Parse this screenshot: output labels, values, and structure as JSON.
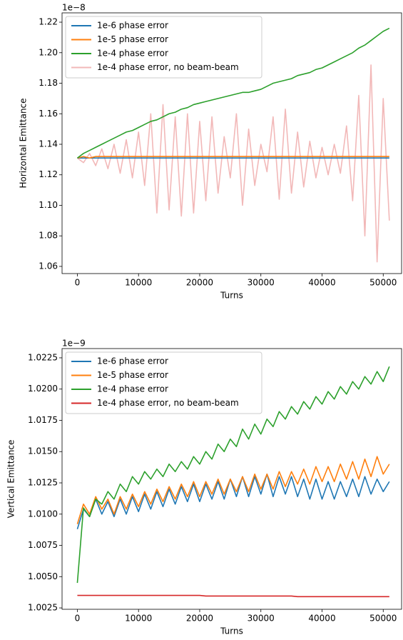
{
  "chart_data": [
    {
      "type": "line",
      "ylabel": "Horizontal Emittance",
      "xlabel": "Turns",
      "offset_text": "1e−8",
      "legend": "upper left",
      "grid": false,
      "xlim": [
        -2500,
        53000
      ],
      "xticks": [
        0,
        10000,
        20000,
        30000,
        40000,
        50000
      ],
      "ylim": [
        1.0553,
        1.2261
      ],
      "yticks": [
        1.06,
        1.08,
        {
          "value": 1.1,
          "label": "1.10"
        },
        1.12,
        1.14,
        1.16,
        1.18,
        {
          "value": 1.2,
          "label": "1.20"
        },
        1.22
      ],
      "x": [
        0,
        1000,
        2000,
        3000,
        4000,
        5000,
        6000,
        7000,
        8000,
        9000,
        10000,
        11000,
        12000,
        13000,
        14000,
        15000,
        16000,
        17000,
        18000,
        19000,
        20000,
        21000,
        22000,
        23000,
        24000,
        25000,
        26000,
        27000,
        28000,
        29000,
        30000,
        31000,
        32000,
        33000,
        34000,
        35000,
        36000,
        37000,
        38000,
        39000,
        40000,
        41000,
        42000,
        43000,
        44000,
        45000,
        46000,
        47000,
        48000,
        49000,
        50000,
        51000
      ],
      "series": [
        {
          "name": "1e-4 phase error, no beam-beam",
          "color": "#f2b8b8",
          "values": [
            1.131,
            1.128,
            1.134,
            1.126,
            1.137,
            1.124,
            1.14,
            1.121,
            1.143,
            1.118,
            1.148,
            1.113,
            1.16,
            1.095,
            1.166,
            1.097,
            1.158,
            1.093,
            1.16,
            1.095,
            1.155,
            1.103,
            1.158,
            1.108,
            1.145,
            1.118,
            1.16,
            1.1,
            1.15,
            1.113,
            1.14,
            1.122,
            1.158,
            1.104,
            1.163,
            1.108,
            1.148,
            1.112,
            1.142,
            1.118,
            1.138,
            1.12,
            1.14,
            1.121,
            1.152,
            1.103,
            1.172,
            1.08,
            1.192,
            1.063,
            1.17,
            1.09
          ]
        },
        {
          "name": "1e-6 phase error",
          "color": "#1f77b4",
          "values": [
            1.131,
            1.131,
            1.131,
            1.131,
            1.131,
            1.131,
            1.131,
            1.131,
            1.131,
            1.131,
            1.131,
            1.131,
            1.131,
            1.131,
            1.131,
            1.131,
            1.131,
            1.131,
            1.131,
            1.131,
            1.131,
            1.131,
            1.131,
            1.131,
            1.131,
            1.131,
            1.131,
            1.131,
            1.131,
            1.131,
            1.131,
            1.131,
            1.131,
            1.131,
            1.131,
            1.131,
            1.131,
            1.131,
            1.131,
            1.131,
            1.131,
            1.131,
            1.131,
            1.131,
            1.131,
            1.131,
            1.131,
            1.131,
            1.131,
            1.131,
            1.131,
            1.131
          ]
        },
        {
          "name": "1e-5 phase error",
          "color": "#ff7f0e",
          "values": [
            1.131,
            1.132,
            1.131,
            1.132,
            1.132,
            1.132,
            1.132,
            1.132,
            1.132,
            1.132,
            1.132,
            1.132,
            1.132,
            1.132,
            1.132,
            1.132,
            1.132,
            1.132,
            1.132,
            1.132,
            1.132,
            1.132,
            1.132,
            1.132,
            1.132,
            1.132,
            1.132,
            1.132,
            1.132,
            1.132,
            1.132,
            1.132,
            1.132,
            1.132,
            1.132,
            1.132,
            1.132,
            1.132,
            1.132,
            1.132,
            1.132,
            1.132,
            1.132,
            1.132,
            1.132,
            1.132,
            1.132,
            1.132,
            1.132,
            1.132,
            1.132,
            1.132
          ]
        },
        {
          "name": "1e-4 phase error",
          "color": "#2ca02c",
          "values": [
            1.131,
            1.134,
            1.136,
            1.138,
            1.14,
            1.142,
            1.144,
            1.146,
            1.148,
            1.149,
            1.151,
            1.153,
            1.155,
            1.156,
            1.158,
            1.16,
            1.161,
            1.163,
            1.164,
            1.166,
            1.167,
            1.168,
            1.169,
            1.17,
            1.171,
            1.172,
            1.173,
            1.174,
            1.174,
            1.175,
            1.176,
            1.178,
            1.18,
            1.181,
            1.182,
            1.183,
            1.185,
            1.186,
            1.187,
            1.189,
            1.19,
            1.192,
            1.194,
            1.196,
            1.198,
            1.2,
            1.203,
            1.205,
            1.208,
            1.211,
            1.214,
            1.216
          ]
        }
      ]
    },
    {
      "type": "line",
      "ylabel": "Vertical Emittance",
      "xlabel": "Turns",
      "offset_text": "1e−9",
      "legend": "upper left",
      "grid": false,
      "xlim": [
        -2500,
        53000
      ],
      "xticks": [
        0,
        10000,
        20000,
        30000,
        40000,
        50000
      ],
      "ylim": [
        1.00239,
        1.02324
      ],
      "yticks": [
        1.0025,
        {
          "value": 1.005,
          "label": "1.0050"
        },
        1.0075,
        {
          "value": 1.01,
          "label": "1.0100"
        },
        1.0125,
        {
          "value": 1.015,
          "label": "1.0150"
        },
        1.0175,
        {
          "value": 1.02,
          "label": "1.0200"
        },
        1.0225
      ],
      "x": [
        0,
        1000,
        2000,
        3000,
        4000,
        5000,
        6000,
        7000,
        8000,
        9000,
        10000,
        11000,
        12000,
        13000,
        14000,
        15000,
        16000,
        17000,
        18000,
        19000,
        20000,
        21000,
        22000,
        23000,
        24000,
        25000,
        26000,
        27000,
        28000,
        29000,
        30000,
        31000,
        32000,
        33000,
        34000,
        35000,
        36000,
        37000,
        38000,
        39000,
        40000,
        41000,
        42000,
        43000,
        44000,
        45000,
        46000,
        47000,
        48000,
        49000,
        50000,
        51000
      ],
      "series": [
        {
          "name": "1e-6 phase error",
          "color": "#1f77b4",
          "values": [
            1.0088,
            1.0104,
            1.0098,
            1.0112,
            1.01,
            1.011,
            1.0098,
            1.0112,
            1.01,
            1.0114,
            1.0102,
            1.0116,
            1.0104,
            1.0118,
            1.0106,
            1.012,
            1.0108,
            1.0122,
            1.011,
            1.0124,
            1.011,
            1.0124,
            1.0112,
            1.0126,
            1.0112,
            1.0128,
            1.0114,
            1.013,
            1.0114,
            1.013,
            1.0116,
            1.0132,
            1.0114,
            1.013,
            1.0116,
            1.013,
            1.0114,
            1.0128,
            1.0112,
            1.0128,
            1.0112,
            1.0126,
            1.0112,
            1.0126,
            1.0114,
            1.0128,
            1.0114,
            1.013,
            1.0116,
            1.0128,
            1.0118,
            1.0126
          ]
        },
        {
          "name": "1e-5 phase error",
          "color": "#ff7f0e",
          "values": [
            1.0092,
            1.0108,
            1.01,
            1.0114,
            1.0104,
            1.0112,
            1.01,
            1.0114,
            1.0104,
            1.0116,
            1.0106,
            1.0118,
            1.0108,
            1.012,
            1.011,
            1.0122,
            1.0112,
            1.0124,
            1.0114,
            1.0126,
            1.0114,
            1.0126,
            1.0116,
            1.0128,
            1.0116,
            1.0128,
            1.0118,
            1.013,
            1.0118,
            1.0132,
            1.012,
            1.0132,
            1.012,
            1.0134,
            1.0122,
            1.0134,
            1.0124,
            1.0136,
            1.0124,
            1.0138,
            1.0126,
            1.0138,
            1.0126,
            1.014,
            1.0128,
            1.0142,
            1.0128,
            1.0144,
            1.013,
            1.0146,
            1.0132,
            1.014
          ]
        },
        {
          "name": "1e-4 phase error",
          "color": "#2ca02c",
          "values": [
            1.0045,
            1.0105,
            1.0098,
            1.0112,
            1.0108,
            1.0118,
            1.0112,
            1.0124,
            1.0118,
            1.013,
            1.0124,
            1.0134,
            1.0128,
            1.0136,
            1.013,
            1.014,
            1.0134,
            1.0142,
            1.0136,
            1.0146,
            1.014,
            1.015,
            1.0144,
            1.0156,
            1.015,
            1.016,
            1.0154,
            1.0168,
            1.016,
            1.0172,
            1.0164,
            1.0176,
            1.017,
            1.0182,
            1.0176,
            1.0186,
            1.018,
            1.019,
            1.0184,
            1.0194,
            1.0188,
            1.0198,
            1.0192,
            1.0202,
            1.0196,
            1.0206,
            1.02,
            1.021,
            1.0204,
            1.0214,
            1.0206,
            1.0218
          ]
        },
        {
          "name": "1e-4 phase error, no beam-beam",
          "color": "#d62728",
          "values": [
            1.0035,
            1.0035,
            1.0035,
            1.0035,
            1.0035,
            1.0035,
            1.0035,
            1.0035,
            1.0035,
            1.0035,
            1.0035,
            1.0035,
            1.0035,
            1.0035,
            1.0035,
            1.0035,
            1.0035,
            1.0035,
            1.0035,
            1.0035,
            1.0035,
            1.00345,
            1.00345,
            1.00345,
            1.00345,
            1.00345,
            1.00345,
            1.00345,
            1.00345,
            1.00345,
            1.00345,
            1.00345,
            1.00345,
            1.00345,
            1.00345,
            1.00345,
            1.0034,
            1.0034,
            1.0034,
            1.0034,
            1.0034,
            1.0034,
            1.0034,
            1.0034,
            1.0034,
            1.0034,
            1.0034,
            1.0034,
            1.0034,
            1.0034,
            1.0034,
            1.0034
          ]
        }
      ]
    }
  ]
}
